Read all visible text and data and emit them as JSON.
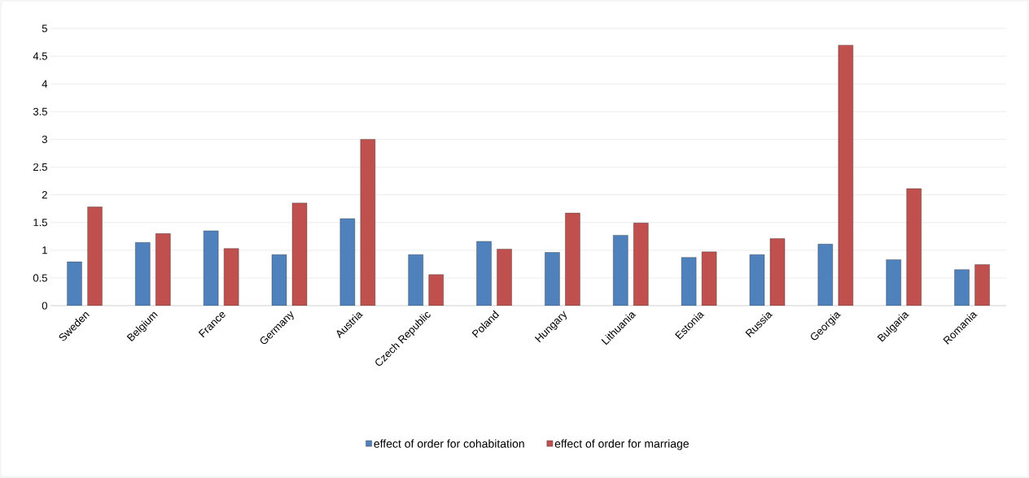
{
  "chart_data": {
    "type": "bar",
    "categories": [
      "Sweden",
      "Belgium",
      "France",
      "Germany",
      "Austria",
      "Czech Republic",
      "Poland",
      "Hungary",
      "Lithuania",
      "Estonia",
      "Russia",
      "Georgia",
      "Bulgaria",
      "Romania"
    ],
    "series": [
      {
        "name": "effect of order for cohabitation",
        "color": "#4f81bd",
        "values": [
          0.79,
          1.14,
          1.35,
          0.92,
          1.57,
          0.92,
          1.16,
          0.96,
          1.27,
          0.87,
          0.92,
          1.11,
          0.83,
          0.65
        ]
      },
      {
        "name": "effect of order for marriage",
        "color": "#c0504d",
        "values": [
          1.78,
          1.3,
          1.03,
          1.85,
          3.0,
          0.56,
          1.02,
          1.67,
          1.49,
          0.97,
          1.21,
          4.7,
          2.11,
          0.74
        ]
      }
    ],
    "ylim": [
      0,
      5
    ],
    "yticks": [
      0,
      0.5,
      1,
      1.5,
      2,
      2.5,
      3,
      3.5,
      4,
      4.5,
      5
    ],
    "grid": "y",
    "legend": "bottom"
  }
}
